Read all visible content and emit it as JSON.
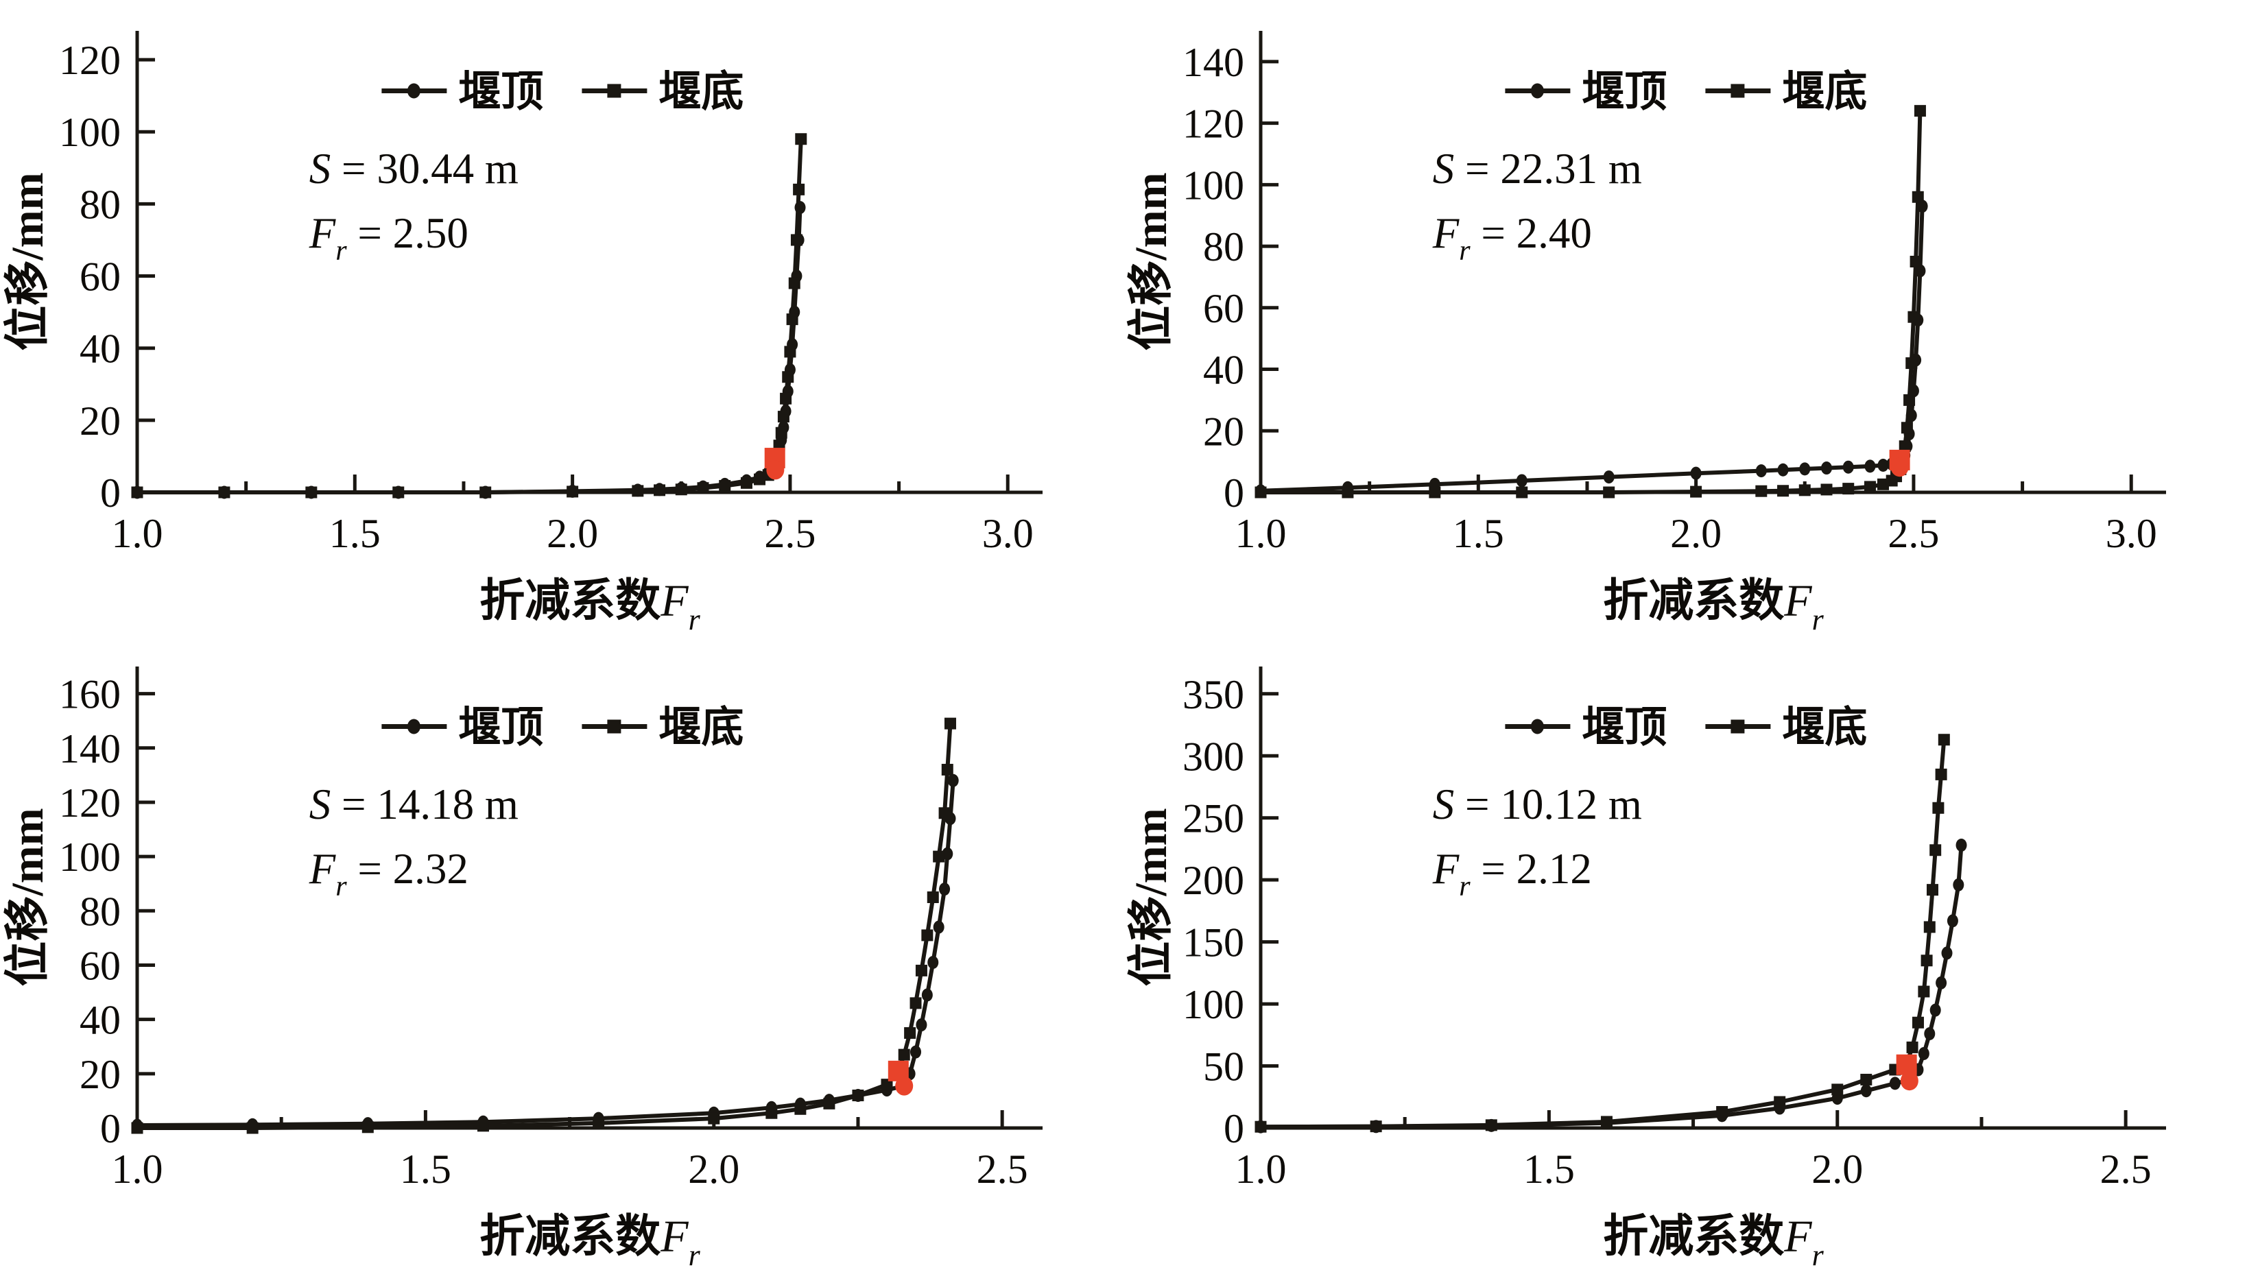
{
  "page": {
    "background": "#ffffff"
  },
  "colors": {
    "line": "#1a1712",
    "highlight": "#e8432a",
    "text": "#0d0b08",
    "axis": "#1a1712"
  },
  "chart_data": [
    {
      "type": "line",
      "position": "top-left",
      "ylabel": "位移/mm",
      "xlabel": {
        "text": "折减系数",
        "var": "F",
        "sub": "r"
      },
      "annotation": {
        "s_var": "S",
        "s_rest": "= 30.44 m",
        "f_var": "F",
        "f_sub": "r",
        "f_rest": "= 2.50"
      },
      "legend": [
        {
          "label": "堰顶",
          "marker": "circle"
        },
        {
          "label": "堰底",
          "marker": "square"
        }
      ],
      "x_ticks": [
        1.0,
        1.5,
        2.0,
        2.5,
        3.0
      ],
      "x_minor_step": 0.25,
      "x_range": [
        1.0,
        3.08
      ],
      "y_ticks": [
        0,
        20,
        40,
        60,
        80,
        100,
        120
      ],
      "y_range": [
        0,
        128
      ],
      "series": [
        {
          "name": "堰顶",
          "marker": "circle",
          "points": [
            [
              1.0,
              0
            ],
            [
              1.2,
              0
            ],
            [
              1.4,
              0
            ],
            [
              1.6,
              0
            ],
            [
              1.8,
              0
            ],
            [
              2.0,
              0.3
            ],
            [
              2.15,
              0.6
            ],
            [
              2.2,
              0.8
            ],
            [
              2.25,
              1.1
            ],
            [
              2.3,
              1.5
            ],
            [
              2.35,
              2.2
            ],
            [
              2.4,
              3.2
            ],
            [
              2.43,
              4.2
            ],
            [
              2.45,
              5.5
            ],
            [
              2.46,
              7
            ],
            [
              2.47,
              9
            ],
            [
              2.475,
              11.5
            ],
            [
              2.48,
              14.5
            ],
            [
              2.485,
              18
            ],
            [
              2.49,
              22.5
            ],
            [
              2.495,
              28
            ],
            [
              2.5,
              34
            ],
            [
              2.505,
              41
            ],
            [
              2.51,
              50
            ],
            [
              2.515,
              60
            ],
            [
              2.52,
              70
            ],
            [
              2.523,
              79
            ]
          ]
        },
        {
          "name": "堰底",
          "marker": "square",
          "points": [
            [
              1.0,
              0
            ],
            [
              1.2,
              0
            ],
            [
              1.4,
              0
            ],
            [
              1.6,
              0
            ],
            [
              1.8,
              0
            ],
            [
              2.0,
              0.2
            ],
            [
              2.15,
              0.4
            ],
            [
              2.2,
              0.6
            ],
            [
              2.25,
              0.8
            ],
            [
              2.3,
              1.2
            ],
            [
              2.35,
              1.8
            ],
            [
              2.4,
              2.6
            ],
            [
              2.43,
              3.6
            ],
            [
              2.45,
              4.8
            ],
            [
              2.46,
              6.2
            ],
            [
              2.465,
              8
            ],
            [
              2.47,
              10
            ],
            [
              2.475,
              13
            ],
            [
              2.48,
              16.5
            ],
            [
              2.485,
              21
            ],
            [
              2.49,
              26
            ],
            [
              2.495,
              32
            ],
            [
              2.5,
              39
            ],
            [
              2.505,
              48
            ],
            [
              2.51,
              58
            ],
            [
              2.515,
              70
            ],
            [
              2.52,
              84
            ],
            [
              2.525,
              98
            ]
          ]
        }
      ],
      "highlight_points": [
        {
          "marker": "square",
          "x": 2.465,
          "y": 9.5
        },
        {
          "marker": "circle",
          "x": 2.466,
          "y": 6.2
        }
      ]
    },
    {
      "type": "line",
      "position": "top-right",
      "ylabel": "位移/mm",
      "xlabel": {
        "text": "折减系数",
        "var": "F",
        "sub": "r"
      },
      "annotation": {
        "s_var": "S",
        "s_rest": "= 22.31 m",
        "f_var": "F",
        "f_sub": "r",
        "f_rest": "= 2.40"
      },
      "legend": [
        {
          "label": "堰顶",
          "marker": "circle"
        },
        {
          "label": "堰底",
          "marker": "square"
        }
      ],
      "x_ticks": [
        1.0,
        1.5,
        2.0,
        2.5,
        3.0
      ],
      "x_minor_step": 0.25,
      "x_range": [
        1.0,
        3.08
      ],
      "y_ticks": [
        0,
        20,
        40,
        60,
        80,
        100,
        120,
        140
      ],
      "y_range": [
        0,
        150
      ],
      "series": [
        {
          "name": "堰顶",
          "marker": "circle",
          "points": [
            [
              1.0,
              0.5
            ],
            [
              1.2,
              1.5
            ],
            [
              1.4,
              2.6
            ],
            [
              1.6,
              3.8
            ],
            [
              1.8,
              5.0
            ],
            [
              2.0,
              6.2
            ],
            [
              2.15,
              7.0
            ],
            [
              2.2,
              7.3
            ],
            [
              2.25,
              7.6
            ],
            [
              2.3,
              7.9
            ],
            [
              2.35,
              8.2
            ],
            [
              2.4,
              8.5
            ],
            [
              2.43,
              8.8
            ],
            [
              2.45,
              9.2
            ],
            [
              2.47,
              10
            ],
            [
              2.48,
              12
            ],
            [
              2.485,
              15
            ],
            [
              2.49,
              19
            ],
            [
              2.495,
              25
            ],
            [
              2.5,
              33
            ],
            [
              2.505,
              43
            ],
            [
              2.51,
              56
            ],
            [
              2.515,
              72
            ],
            [
              2.52,
              93
            ]
          ]
        },
        {
          "name": "堰底",
          "marker": "square",
          "points": [
            [
              1.0,
              0
            ],
            [
              1.2,
              0
            ],
            [
              1.4,
              0
            ],
            [
              1.6,
              0
            ],
            [
              1.8,
              0
            ],
            [
              2.0,
              0.2
            ],
            [
              2.15,
              0.4
            ],
            [
              2.2,
              0.5
            ],
            [
              2.25,
              0.7
            ],
            [
              2.3,
              0.9
            ],
            [
              2.35,
              1.2
            ],
            [
              2.4,
              1.8
            ],
            [
              2.43,
              2.6
            ],
            [
              2.45,
              3.8
            ],
            [
              2.46,
              5.2
            ],
            [
              2.47,
              7.5
            ],
            [
              2.475,
              10.5
            ],
            [
              2.48,
              15
            ],
            [
              2.485,
              21
            ],
            [
              2.49,
              30
            ],
            [
              2.495,
              42
            ],
            [
              2.5,
              57
            ],
            [
              2.505,
              75
            ],
            [
              2.51,
              96
            ],
            [
              2.515,
              124
            ]
          ]
        }
      ],
      "highlight_points": [
        {
          "marker": "square",
          "x": 2.468,
          "y": 10.5
        },
        {
          "marker": "circle",
          "x": 2.468,
          "y": 8.2
        }
      ]
    },
    {
      "type": "line",
      "position": "bottom-left",
      "ylabel": "位移/mm",
      "xlabel": {
        "text": "折减系数",
        "var": "F",
        "sub": "r"
      },
      "annotation": {
        "s_var": "S",
        "s_rest": "= 14.18 m",
        "f_var": "F",
        "f_sub": "r",
        "f_rest": "= 2.32"
      },
      "legend": [
        {
          "label": "堰顶",
          "marker": "circle"
        },
        {
          "label": "堰底",
          "marker": "square"
        }
      ],
      "x_ticks": [
        1.0,
        1.5,
        2.0,
        2.5
      ],
      "x_minor_step": 0.25,
      "x_range": [
        1.0,
        2.57
      ],
      "y_ticks": [
        0,
        20,
        40,
        60,
        80,
        100,
        120,
        140,
        160
      ],
      "y_range": [
        0,
        170
      ],
      "series": [
        {
          "name": "堰顶",
          "marker": "circle",
          "points": [
            [
              1.0,
              1
            ],
            [
              1.2,
              1.2
            ],
            [
              1.4,
              1.6
            ],
            [
              1.6,
              2.2
            ],
            [
              1.8,
              3.5
            ],
            [
              2.0,
              5.5
            ],
            [
              2.1,
              7.5
            ],
            [
              2.15,
              8.8
            ],
            [
              2.2,
              10.2
            ],
            [
              2.25,
              12
            ],
            [
              2.3,
              14
            ],
            [
              2.33,
              15.5
            ],
            [
              2.34,
              20
            ],
            [
              2.35,
              28
            ],
            [
              2.36,
              38
            ],
            [
              2.37,
              49
            ],
            [
              2.38,
              61
            ],
            [
              2.39,
              74
            ],
            [
              2.4,
              88
            ],
            [
              2.405,
              101
            ],
            [
              2.41,
              114
            ],
            [
              2.415,
              128
            ]
          ]
        },
        {
          "name": "堰底",
          "marker": "square",
          "points": [
            [
              1.0,
              0
            ],
            [
              1.2,
              0
            ],
            [
              1.4,
              0.3
            ],
            [
              1.6,
              0.8
            ],
            [
              1.8,
              1.8
            ],
            [
              2.0,
              3.5
            ],
            [
              2.1,
              5.5
            ],
            [
              2.15,
              7
            ],
            [
              2.2,
              9
            ],
            [
              2.25,
              12
            ],
            [
              2.3,
              16
            ],
            [
              2.32,
              21
            ],
            [
              2.33,
              27
            ],
            [
              2.34,
              35
            ],
            [
              2.35,
              46
            ],
            [
              2.36,
              58
            ],
            [
              2.37,
              71
            ],
            [
              2.38,
              85
            ],
            [
              2.39,
              100
            ],
            [
              2.4,
              116
            ],
            [
              2.405,
              132
            ],
            [
              2.41,
              149
            ]
          ]
        }
      ],
      "highlight_points": [
        {
          "marker": "square",
          "x": 2.32,
          "y": 21
        },
        {
          "marker": "circle",
          "x": 2.33,
          "y": 15.5
        }
      ]
    },
    {
      "type": "line",
      "position": "bottom-right",
      "ylabel": "位移/mm",
      "xlabel": {
        "text": "折减系数",
        "var": "F",
        "sub": "r"
      },
      "annotation": {
        "s_var": "S",
        "s_rest": "= 10.12 m",
        "f_var": "F",
        "f_sub": "r",
        "f_rest": "= 2.12"
      },
      "legend": [
        {
          "label": "堰顶",
          "marker": "circle"
        },
        {
          "label": "堰底",
          "marker": "square"
        }
      ],
      "x_ticks": [
        1.0,
        1.5,
        2.0,
        2.5
      ],
      "x_minor_step": 0.25,
      "x_range": [
        1.0,
        2.57
      ],
      "y_ticks": [
        0,
        50,
        100,
        150,
        200,
        250,
        300,
        350
      ],
      "y_range": [
        0,
        372
      ],
      "series": [
        {
          "name": "堰顶",
          "marker": "circle",
          "points": [
            [
              1.0,
              1
            ],
            [
              1.2,
              1.2
            ],
            [
              1.4,
              2
            ],
            [
              1.6,
              4
            ],
            [
              1.8,
              10
            ],
            [
              1.9,
              16
            ],
            [
              2.0,
              24
            ],
            [
              2.05,
              30
            ],
            [
              2.1,
              36
            ],
            [
              2.13,
              39
            ],
            [
              2.14,
              47
            ],
            [
              2.15,
              60
            ],
            [
              2.16,
              76
            ],
            [
              2.17,
              95
            ],
            [
              2.18,
              117
            ],
            [
              2.19,
              141
            ],
            [
              2.2,
              167
            ],
            [
              2.21,
              196
            ],
            [
              2.215,
              228
            ]
          ]
        },
        {
          "name": "堰底",
          "marker": "square",
          "points": [
            [
              1.0,
              1
            ],
            [
              1.2,
              1.3
            ],
            [
              1.4,
              2.3
            ],
            [
              1.6,
              5
            ],
            [
              1.8,
              13
            ],
            [
              1.9,
              21
            ],
            [
              2.0,
              31
            ],
            [
              2.05,
              39
            ],
            [
              2.1,
              47
            ],
            [
              2.12,
              52
            ],
            [
              2.13,
              65
            ],
            [
              2.14,
              85
            ],
            [
              2.15,
              110
            ],
            [
              2.155,
              135
            ],
            [
              2.16,
              162
            ],
            [
              2.165,
              192
            ],
            [
              2.17,
              224
            ],
            [
              2.175,
              258
            ],
            [
              2.18,
              285
            ],
            [
              2.185,
              313
            ]
          ]
        }
      ],
      "highlight_points": [
        {
          "marker": "square",
          "x": 2.12,
          "y": 51
        },
        {
          "marker": "circle",
          "x": 2.125,
          "y": 38
        }
      ]
    }
  ]
}
